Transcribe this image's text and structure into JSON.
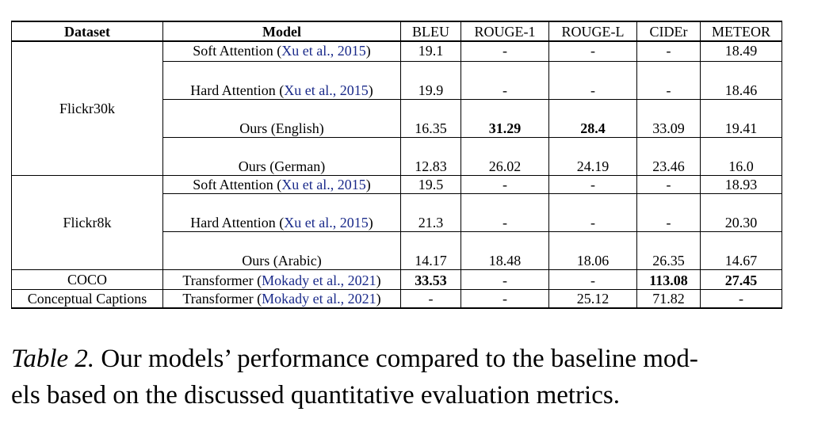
{
  "table": {
    "columns": [
      "Dataset",
      "Model",
      "BLEU",
      "ROUGE-1",
      "ROUGE-L",
      "CIDEr",
      "METEOR"
    ],
    "groups": [
      {
        "dataset": "Flickr30k",
        "rows": [
          {
            "model": "Soft Attention",
            "cite": "Xu et al., 2015",
            "bleu": "19.1",
            "rouge1": "-",
            "rougel": "-",
            "cider": "-",
            "meteor": "18.49"
          },
          {
            "model": "Hard Attention",
            "cite": "Xu et al., 2015",
            "bleu": "19.9",
            "rouge1": "-",
            "rougel": "-",
            "cider": "-",
            "meteor": "18.46"
          },
          {
            "model": "Ours (English)",
            "cite": "",
            "bleu": "16.35",
            "rouge1": "31.29",
            "rougel": "28.4",
            "cider": "33.09",
            "meteor": "19.41"
          },
          {
            "model": "Ours (German)",
            "cite": "",
            "bleu": "12.83",
            "rouge1": "26.02",
            "rougel": "24.19",
            "cider": "23.46",
            "meteor": "16.0"
          }
        ]
      },
      {
        "dataset": "Flickr8k",
        "rows": [
          {
            "model": "Soft Attention",
            "cite": "Xu et al., 2015",
            "bleu": "19.5",
            "rouge1": "-",
            "rougel": "-",
            "cider": "-",
            "meteor": "18.93"
          },
          {
            "model": "Hard Attention",
            "cite": "Xu et al., 2015",
            "bleu": "21.3",
            "rouge1": "-",
            "rougel": "-",
            "cider": "-",
            "meteor": "20.30"
          },
          {
            "model": "Ours (Arabic)",
            "cite": "",
            "bleu": "14.17",
            "rouge1": "18.48",
            "rougel": "18.06",
            "cider": "26.35",
            "meteor": "14.67"
          }
        ]
      },
      {
        "dataset": "COCO",
        "rows": [
          {
            "model": "Transformer",
            "cite": "Mokady et al., 2021",
            "bleu": "33.53",
            "rouge1": "-",
            "rougel": "-",
            "cider": "113.08",
            "meteor": "27.45"
          }
        ]
      },
      {
        "dataset": "Conceptual Captions",
        "rows": [
          {
            "model": "Transformer",
            "cite": "Mokady et al., 2021",
            "bleu": "-",
            "rouge1": "-",
            "rougel": "25.12",
            "cider": "71.82",
            "meteor": "-"
          }
        ]
      }
    ]
  },
  "caption": {
    "label": "Table 2.",
    "text": "Our models’ performance compared to the baseline mod-",
    "text2": "els based on the discussed quantitative evaluation metrics."
  },
  "colors": {
    "citation": "#1a2a8a"
  }
}
